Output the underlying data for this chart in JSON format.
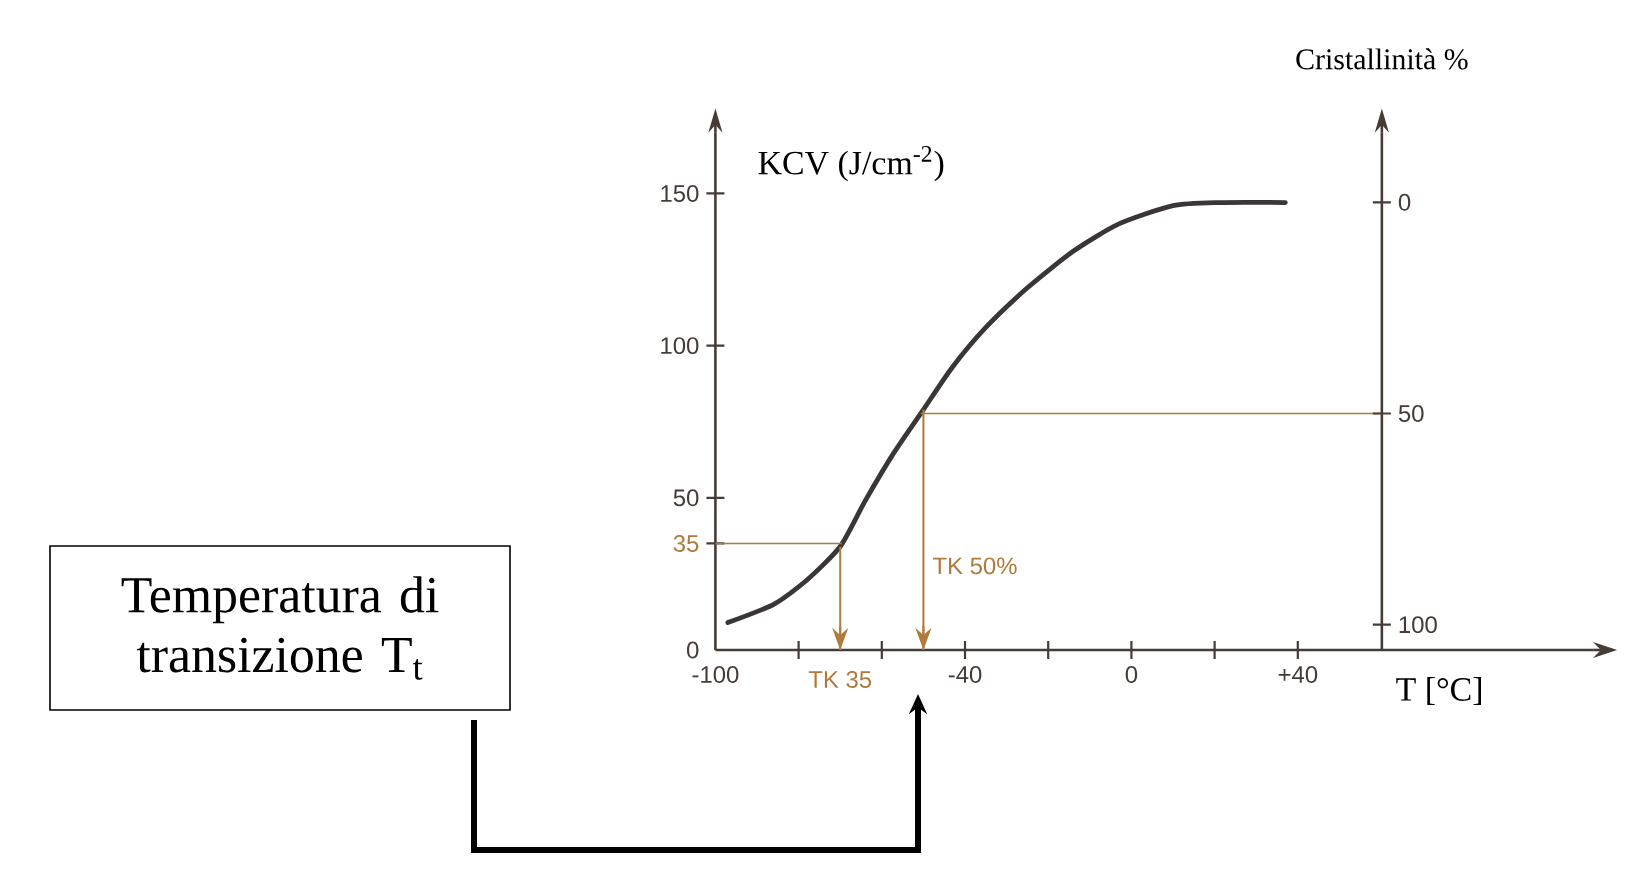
{
  "chart_data": {
    "type": "line",
    "xlabel": "T [°C]",
    "ylabel": "KCV (J/cm$^{-2}$)",
    "y2label": "Cristallinità %",
    "annotations": [
      "Temperatura di transizione T$_{t}$"
    ],
    "xlim": [
      -100,
      111
    ],
    "ylim": [
      0,
      170
    ],
    "y2lim": [
      106,
      -16.5
    ],
    "xticks": [
      {
        "value": -100,
        "label": "-100"
      },
      {
        "value": -80,
        "label": null
      },
      {
        "value": -60,
        "label": null
      },
      {
        "value": -40,
        "label": "-40"
      },
      {
        "value": -20,
        "label": null
      },
      0,
      {
        "value": 20,
        "label": null
      },
      {
        "value": 40,
        "label": "+40"
      }
    ],
    "yticks": [
      0,
      35,
      50,
      100,
      150
    ],
    "y2ticks": [
      0,
      50,
      100
    ],
    "series": [
      {
        "color": "#3a3636",
        "x": [
          -97,
          -86,
          -78,
          -70,
          -64,
          -57,
          -50,
          -43,
          -35,
          -25,
          -14,
          -3,
          10,
          21,
          37
        ],
        "values": [
          9,
          15,
          23,
          34,
          49,
          65,
          79,
          93,
          106,
          119,
          131,
          140,
          146,
          147,
          147
        ]
      }
    ],
    "ref_lines": [
      {
        "axis": "x",
        "value": -70,
        "label": "TK 35",
        "color": "#b07a3c"
      },
      {
        "axis": "x",
        "value": -50,
        "label": "TK 50%",
        "color": "#b07a3c"
      },
      {
        "axis": "y",
        "value": 35,
        "color": "#b07a3c"
      },
      {
        "axis": "y2",
        "value": 50,
        "color": "#b07a3c"
      }
    ],
    "marker": "none",
    "line_style": "solid",
    "grid": false
  }
}
